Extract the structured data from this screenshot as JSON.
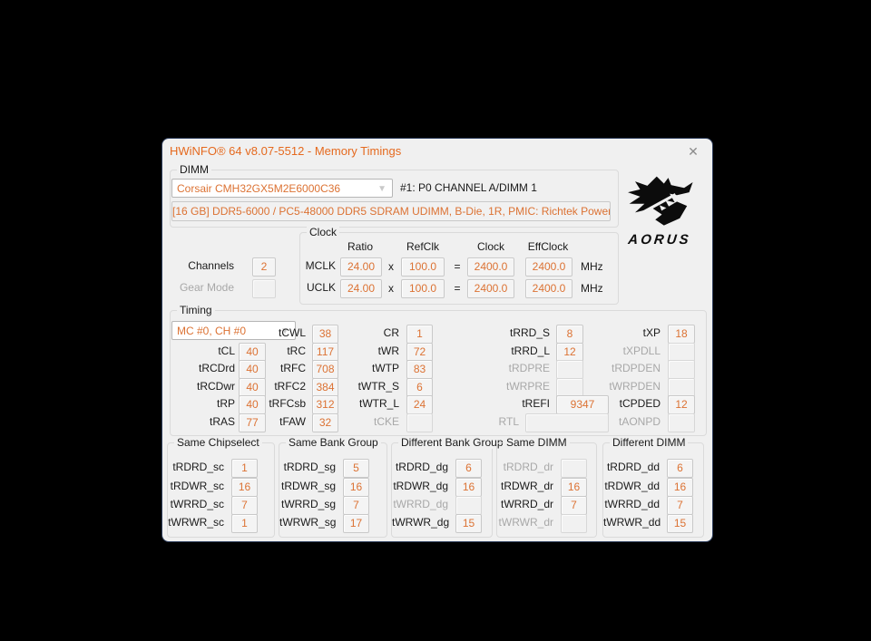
{
  "window": {
    "title": "HWiNFO® 64 v8.07-5512 - Memory Timings",
    "close_icon": "✕"
  },
  "colors": {
    "title_orange": "#E5691E",
    "value_orange": "#DC7233",
    "disabled_gray": "#A8A8A8"
  },
  "branding": {
    "wordmark": "AORUS"
  },
  "dimm": {
    "group_label": "DIMM",
    "selected_module": "Corsair CMH32GX5M2E6000C36",
    "slot_label": "#1: P0 CHANNEL A/DIMM 1",
    "module_info": "[16 GB] DDR5-6000 / PC5-48000 DDR5 SDRAM UDIMM, B-Die, 1R, PMIC: Richtek Power"
  },
  "channels": {
    "label": "Channels",
    "value": "2"
  },
  "gear_mode": {
    "label": "Gear Mode",
    "value": ""
  },
  "clock": {
    "group_label": "Clock",
    "headers": [
      "Ratio",
      "RefClk",
      "Clock",
      "EffClock"
    ],
    "symbols": {
      "multiply": "x",
      "equals": "=",
      "unit": "MHz"
    },
    "rows": [
      {
        "name": "MCLK",
        "ratio": "24.00",
        "refclk": "100.0",
        "clock": "2400.0",
        "effclock": "2400.0"
      },
      {
        "name": "UCLK",
        "ratio": "24.00",
        "refclk": "100.0",
        "clock": "2400.0",
        "effclock": "2400.0"
      }
    ]
  },
  "timing": {
    "group_label": "Timing",
    "selector": "MC #0, CH #0",
    "columns": [
      {
        "fields": [
          {
            "label": "tCL",
            "value": "40"
          },
          {
            "label": "tRCDrd",
            "value": "40"
          },
          {
            "label": "tRCDwr",
            "value": "40"
          },
          {
            "label": "tRP",
            "value": "40"
          },
          {
            "label": "tRAS",
            "value": "77"
          }
        ]
      },
      {
        "fields": [
          {
            "label": "tCWL",
            "value": "38"
          },
          {
            "label": "tRC",
            "value": "117"
          },
          {
            "label": "tRFC",
            "value": "708"
          },
          {
            "label": "tRFC2",
            "value": "384"
          },
          {
            "label": "tRFCsb",
            "value": "312"
          },
          {
            "label": "tFAW",
            "value": "32"
          }
        ]
      },
      {
        "fields": [
          {
            "label": "CR",
            "value": "1"
          },
          {
            "label": "tWR",
            "value": "72"
          },
          {
            "label": "tWTP",
            "value": "83"
          },
          {
            "label": "tWTR_S",
            "value": "6"
          },
          {
            "label": "tWTR_L",
            "value": "24"
          },
          {
            "label": "tCKE",
            "value": "",
            "disabled": true
          }
        ]
      },
      {
        "fields": [
          {
            "label": "tRRD_S",
            "value": "8"
          },
          {
            "label": "tRRD_L",
            "value": "12"
          },
          {
            "label": "tRDPRE",
            "value": "",
            "disabled": true
          },
          {
            "label": "tWRPRE",
            "value": "",
            "disabled": true
          },
          {
            "label": "tREFI",
            "value": "9347"
          },
          {
            "label": "RTL",
            "value": "",
            "disabled": true
          }
        ]
      },
      {
        "fields": [
          {
            "label": "tXP",
            "value": "18"
          },
          {
            "label": "tXPDLL",
            "value": "",
            "disabled": true
          },
          {
            "label": "tRDPDEN",
            "value": "",
            "disabled": true
          },
          {
            "label": "tWRPDEN",
            "value": "",
            "disabled": true
          },
          {
            "label": "tCPDED",
            "value": "12"
          },
          {
            "label": "tAONPD",
            "value": "",
            "disabled": true
          }
        ]
      }
    ]
  },
  "turnaround_groups": [
    {
      "title": "Same Chipselect",
      "fields": [
        {
          "label": "tRDRD_sc",
          "value": "1"
        },
        {
          "label": "tRDWR_sc",
          "value": "16"
        },
        {
          "label": "tWRRD_sc",
          "value": "7"
        },
        {
          "label": "tWRWR_sc",
          "value": "1"
        }
      ]
    },
    {
      "title": "Same Bank Group",
      "fields": [
        {
          "label": "tRDRD_sg",
          "value": "5"
        },
        {
          "label": "tRDWR_sg",
          "value": "16"
        },
        {
          "label": "tWRRD_sg",
          "value": "7"
        },
        {
          "label": "tWRWR_sg",
          "value": "17"
        }
      ]
    },
    {
      "title": "Different Bank Group",
      "fields": [
        {
          "label": "tRDRD_dg",
          "value": "6"
        },
        {
          "label": "tRDWR_dg",
          "value": "16"
        },
        {
          "label": "tWRRD_dg",
          "value": "",
          "disabled": true
        },
        {
          "label": "tWRWR_dg",
          "value": "15"
        }
      ]
    },
    {
      "title": "Same DIMM",
      "fields": [
        {
          "label": "tRDRD_dr",
          "value": "",
          "disabled": true
        },
        {
          "label": "tRDWR_dr",
          "value": "16"
        },
        {
          "label": "tWRRD_dr",
          "value": "7"
        },
        {
          "label": "tWRWR_dr",
          "value": "",
          "disabled": true
        }
      ]
    },
    {
      "title": "Different DIMM",
      "fields": [
        {
          "label": "tRDRD_dd",
          "value": "6"
        },
        {
          "label": "tRDWR_dd",
          "value": "16"
        },
        {
          "label": "tWRRD_dd",
          "value": "7"
        },
        {
          "label": "tWRWR_dd",
          "value": "15"
        }
      ]
    }
  ]
}
